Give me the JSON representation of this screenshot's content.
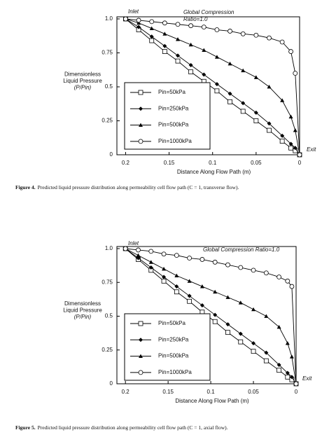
{
  "chart_data": [
    {
      "type": "line",
      "caption_label": "Figure 4.",
      "caption": "Predicted liquid pressure distribution along permeability cell flow path (C = 1, transverse flow).",
      "x_label": "Distance Along Flow Path (m)",
      "y_label": [
        "Dimensionless",
        "Liquid Pressure",
        "(P/Pin)"
      ],
      "inlet_label": "Inlet",
      "exit_label": "Exit",
      "note": [
        "Global Compression",
        "Ratio=1.0"
      ],
      "x": [
        0.2,
        0.185,
        0.17,
        0.155,
        0.14,
        0.125,
        0.11,
        0.095,
        0.08,
        0.065,
        0.05,
        0.035,
        0.02,
        0.01,
        0.005,
        0
      ],
      "xlim": [
        0.21,
        0
      ],
      "xticks": [
        0.2,
        0.15,
        0.1,
        0.05,
        0
      ],
      "ylim": [
        0,
        1
      ],
      "yticks": [
        0,
        0.25,
        0.5,
        0.75,
        {
          "value": 1,
          "label": "1.0"
        }
      ],
      "legend": "lower left",
      "series": [
        {
          "name": "Pin=50kPa",
          "color": "#000000",
          "marker": "square",
          "values": [
            1.0,
            0.92,
            0.84,
            0.76,
            0.69,
            0.61,
            0.54,
            0.47,
            0.39,
            0.32,
            0.25,
            0.18,
            0.1,
            0.05,
            0.03,
            0
          ]
        },
        {
          "name": "Pin=250kPa",
          "color": "#000000",
          "marker": "diamond",
          "values": [
            1.0,
            0.94,
            0.87,
            0.8,
            0.73,
            0.66,
            0.59,
            0.52,
            0.45,
            0.38,
            0.31,
            0.23,
            0.14,
            0.08,
            0.05,
            0
          ]
        },
        {
          "name": "Pin=500kPa",
          "color": "#000000",
          "marker": "triangle",
          "values": [
            1.0,
            0.97,
            0.93,
            0.89,
            0.85,
            0.81,
            0.77,
            0.72,
            0.67,
            0.62,
            0.57,
            0.5,
            0.4,
            0.28,
            0.18,
            0
          ]
        },
        {
          "name": "Pin=1000kPa",
          "color": "#000000",
          "marker": "circle",
          "values": [
            1.0,
            0.99,
            0.98,
            0.97,
            0.96,
            0.95,
            0.94,
            0.92,
            0.91,
            0.89,
            0.88,
            0.86,
            0.83,
            0.76,
            0.6,
            0
          ]
        }
      ]
    },
    {
      "type": "line",
      "caption_label": "Figure 5.",
      "caption": "Predicted liquid pressure distribution along permeability cell flow path (C = 1, axial flow).",
      "x_label": "Distance Along Flow Path (m)",
      "y_label": [
        "Dimensionless",
        "Liquid Pressure",
        "(P/Pin)"
      ],
      "inlet_label": "Inlet",
      "exit_label": "Exit",
      "note": [
        "Global Compression Ratio=1.0"
      ],
      "x": [
        0.2,
        0.185,
        0.17,
        0.155,
        0.14,
        0.125,
        0.11,
        0.095,
        0.08,
        0.065,
        0.05,
        0.035,
        0.02,
        0.01,
        0.005,
        0
      ],
      "xlim": [
        0.21,
        0
      ],
      "xticks": [
        0.2,
        0.15,
        0.1,
        0.05,
        0
      ],
      "ylim": [
        0,
        1
      ],
      "yticks": [
        0,
        0.25,
        0.5,
        0.75,
        {
          "value": 1,
          "label": "1.0"
        }
      ],
      "legend": "lower left",
      "series": [
        {
          "name": "Pin=50kPa",
          "color": "#000000",
          "marker": "square",
          "values": [
            1.0,
            0.92,
            0.84,
            0.76,
            0.68,
            0.61,
            0.53,
            0.46,
            0.38,
            0.31,
            0.24,
            0.17,
            0.1,
            0.05,
            0.03,
            0
          ]
        },
        {
          "name": "Pin=250kPa",
          "color": "#000000",
          "marker": "diamond",
          "values": [
            1.0,
            0.93,
            0.86,
            0.79,
            0.72,
            0.65,
            0.58,
            0.51,
            0.44,
            0.37,
            0.3,
            0.23,
            0.14,
            0.08,
            0.05,
            0
          ]
        },
        {
          "name": "Pin=500kPa",
          "color": "#000000",
          "marker": "triangle",
          "values": [
            1.0,
            0.95,
            0.9,
            0.85,
            0.8,
            0.76,
            0.72,
            0.68,
            0.64,
            0.6,
            0.55,
            0.5,
            0.42,
            0.3,
            0.2,
            0
          ]
        },
        {
          "name": "Pin=1000kPa",
          "color": "#000000",
          "marker": "circle",
          "values": [
            1.0,
            0.99,
            0.98,
            0.96,
            0.95,
            0.93,
            0.92,
            0.9,
            0.88,
            0.86,
            0.84,
            0.82,
            0.79,
            0.76,
            0.72,
            0
          ]
        }
      ]
    }
  ]
}
